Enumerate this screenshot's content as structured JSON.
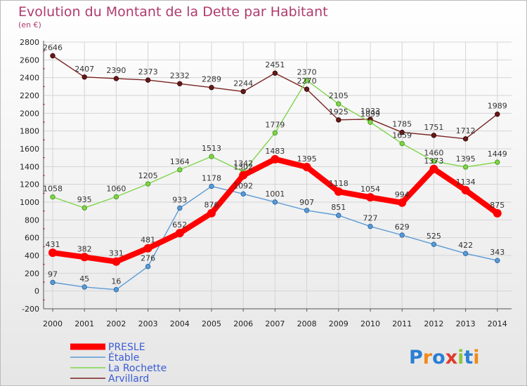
{
  "chart_data": {
    "type": "line",
    "title": "Evolution du Montant de la Dette par Habitant",
    "subtitle": "(en €)",
    "x": [
      "2000",
      "2001",
      "2002",
      "2003",
      "2004",
      "2005",
      "2006",
      "2007",
      "2008",
      "2009",
      "2010",
      "2011",
      "2012",
      "2013",
      "2014"
    ],
    "ylim": [
      -200,
      2800
    ],
    "yticks": [
      "-200",
      "0",
      "200",
      "400",
      "600",
      "800",
      "1000",
      "1200",
      "1400",
      "1600",
      "1800",
      "2000",
      "2200",
      "2400",
      "2600",
      "2800"
    ],
    "grid": true,
    "legend_position": "bottom-left",
    "series": [
      {
        "name": "PRESLE",
        "color": "#ff0000",
        "values": [
          431,
          382,
          331,
          481,
          652,
          876,
          1302,
          1483,
          1395,
          1118,
          1054,
          994,
          1373,
          1134,
          875
        ],
        "labels": [
          "431",
          "382",
          "331",
          "481",
          "652",
          "876",
          "1302",
          "1483",
          "1395",
          "1118",
          "1054",
          "994",
          "1373",
          "1134",
          "875"
        ]
      },
      {
        "name": "Étable",
        "color": "#5b9bd5",
        "values": [
          97,
          45,
          16,
          276,
          933,
          1178,
          1092,
          1001,
          907,
          851,
          727,
          629,
          525,
          422,
          343
        ],
        "labels": [
          "97",
          "45",
          "16",
          "276",
          "933",
          "1178",
          "1092",
          "1001",
          "907",
          "851",
          "727",
          "629",
          "525",
          "422",
          "343"
        ]
      },
      {
        "name": "La Rochette",
        "color": "#7fd54a",
        "values": [
          1058,
          935,
          1060,
          1205,
          1364,
          1513,
          1342,
          1779,
          2370,
          2105,
          1899,
          1659,
          1460,
          1395,
          1449
        ],
        "labels": [
          "1058",
          "935",
          "1060",
          "1205",
          "1364",
          "1513",
          "1342",
          "1779",
          "2370",
          "2105",
          "1899",
          "1659",
          "1460",
          "1395",
          "1449"
        ]
      },
      {
        "name": "Arvillard",
        "color": "#7a2323",
        "values": [
          2646,
          2407,
          2390,
          2373,
          2332,
          2289,
          2244,
          2451,
          2270,
          1925,
          1933,
          1785,
          1751,
          1712,
          1989
        ],
        "labels": [
          "2646",
          "2407",
          "2390",
          "2373",
          "2332",
          "2289",
          "2244",
          "2451",
          "2270",
          "1925",
          "1933",
          "1785",
          "1751",
          "1712",
          "1989"
        ]
      }
    ]
  },
  "logo": {
    "text": "Proxiti",
    "colors": [
      "#2a7fd4",
      "#f08a1c",
      "#2a7fd4",
      "#e03b2b",
      "#8cc63f",
      "#2a7fd4",
      "#f08a1c"
    ]
  }
}
